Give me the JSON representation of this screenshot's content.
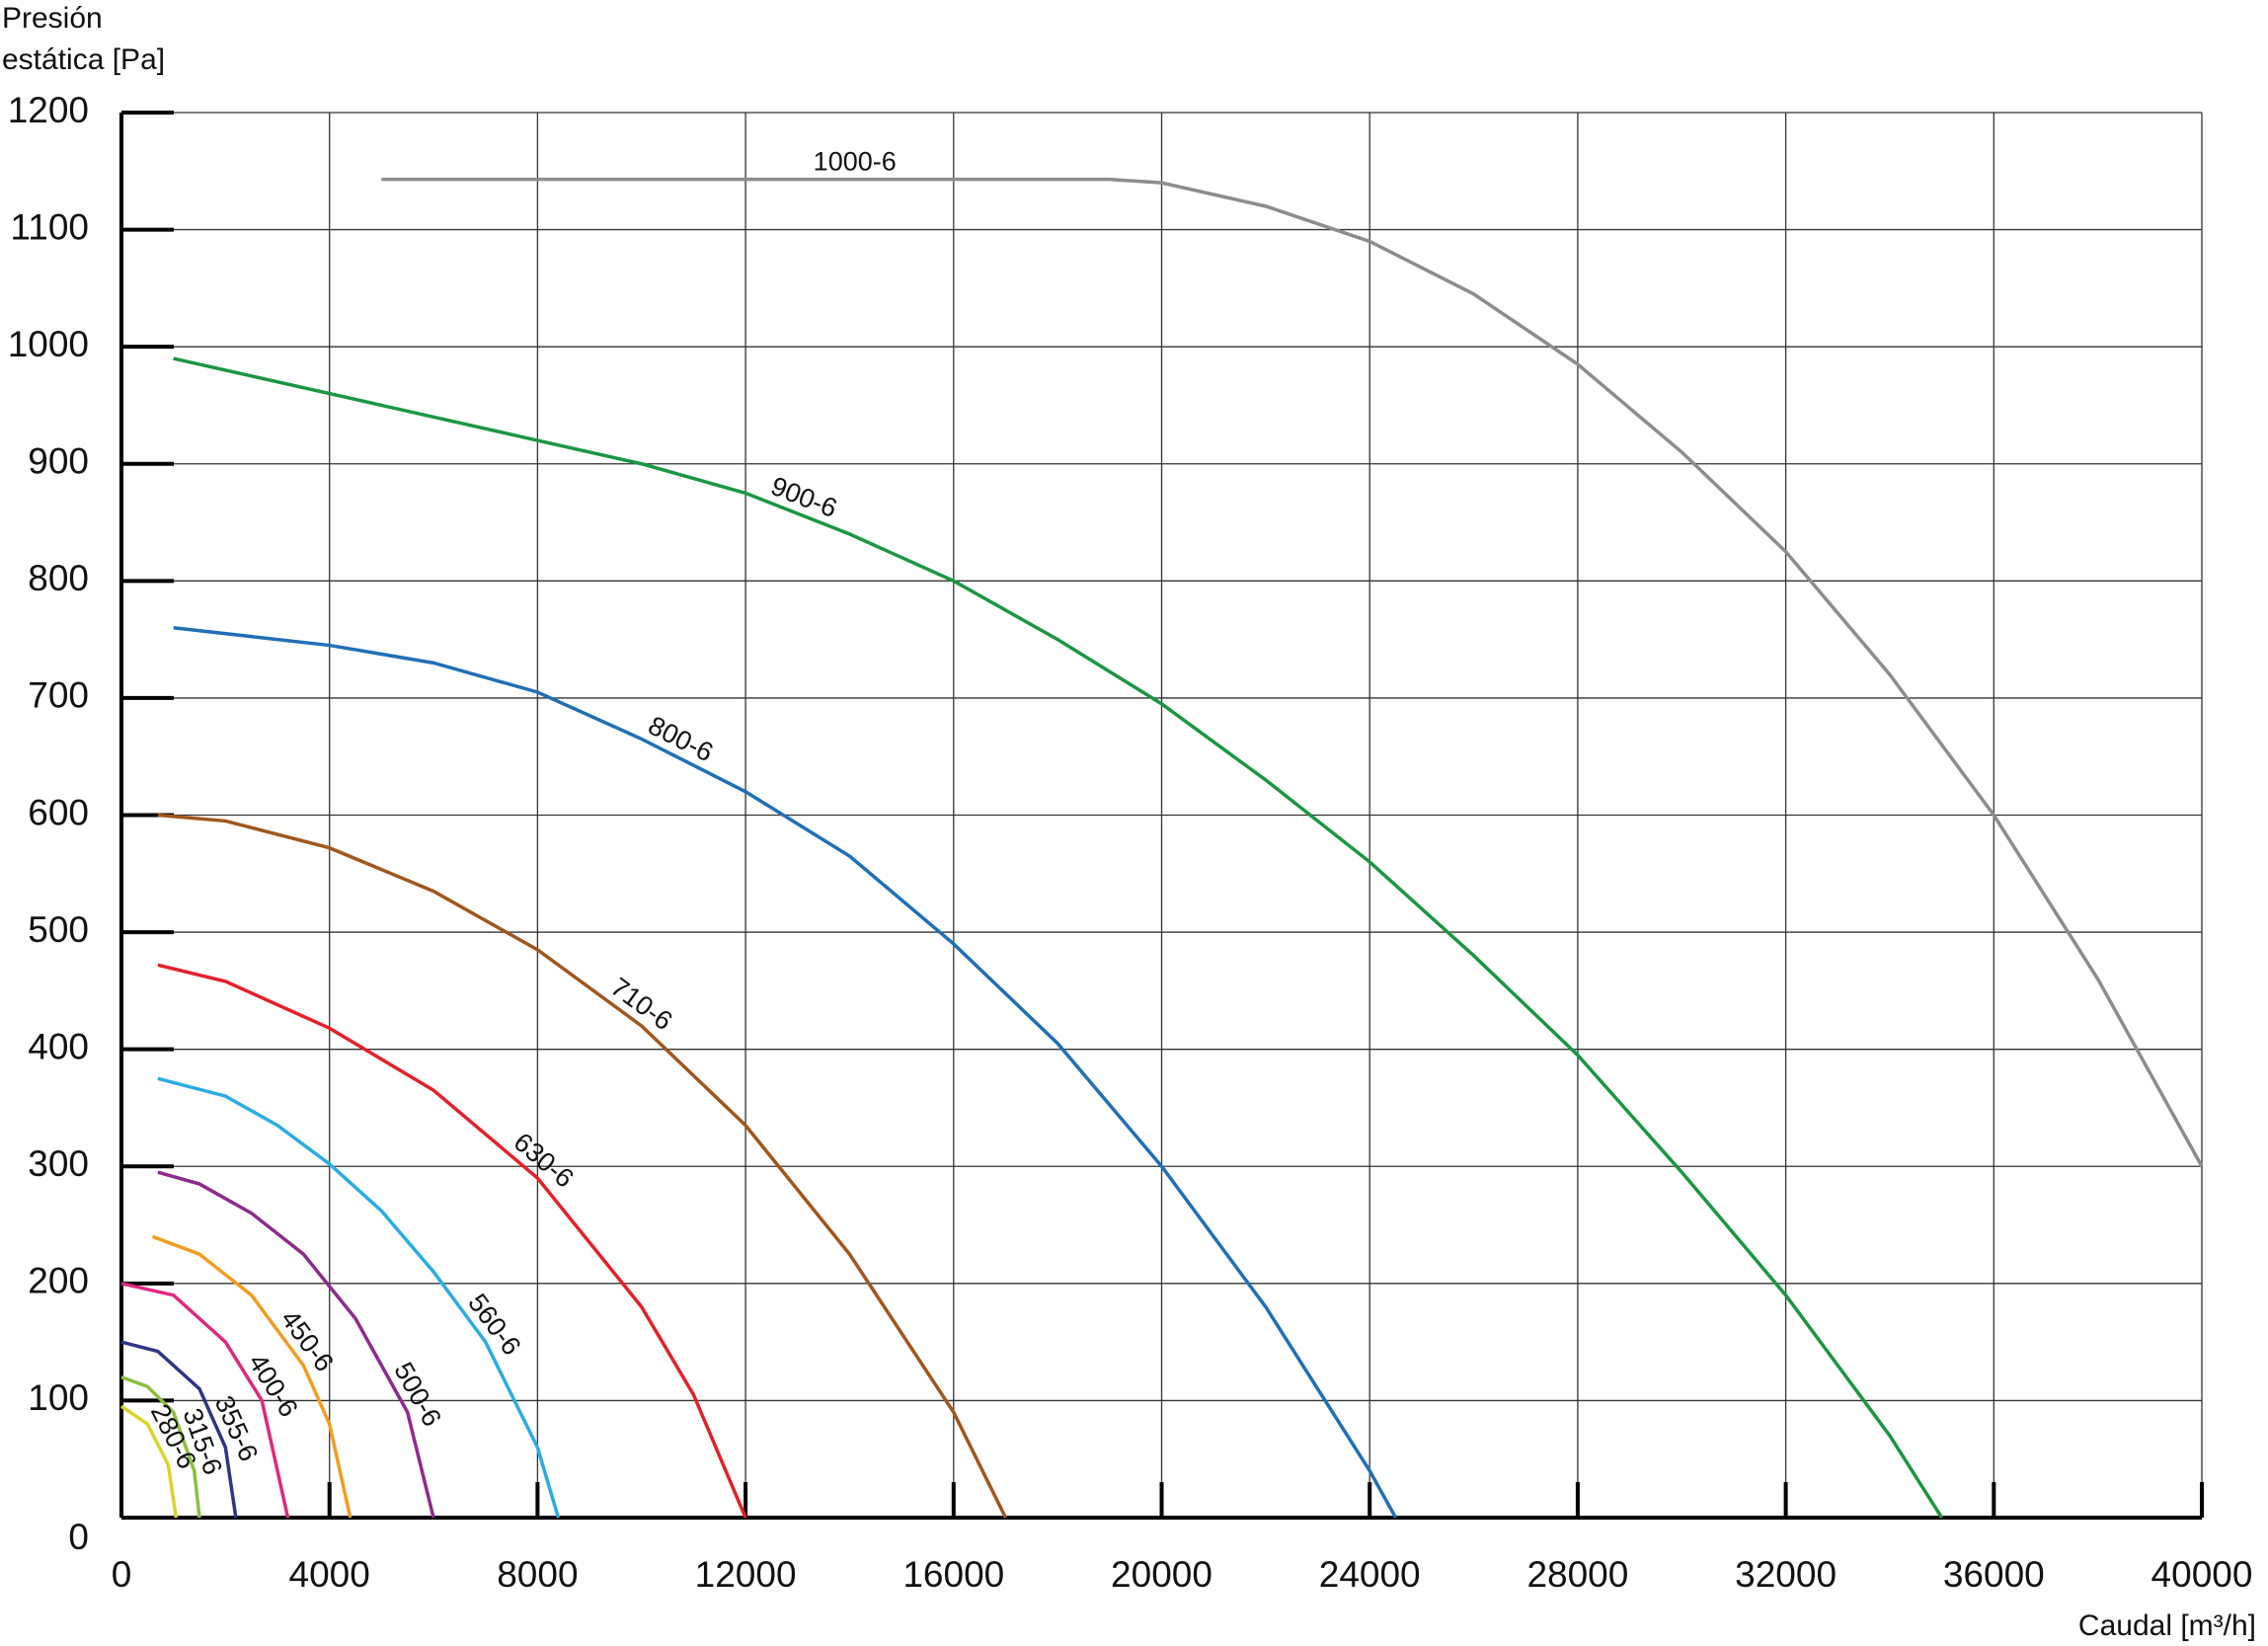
{
  "chart_data": {
    "type": "line",
    "ylabel": [
      "Presión",
      "estática [Pa]"
    ],
    "xlabel": "Caudal [m³/h]",
    "xlim": [
      0,
      40000
    ],
    "xticks": [
      0,
      4000,
      8000,
      12000,
      16000,
      20000,
      24000,
      28000,
      32000,
      36000,
      40000
    ],
    "ylim": [
      0,
      1200
    ],
    "yticks": [
      0,
      100,
      200,
      300,
      400,
      500,
      600,
      700,
      800,
      900,
      1000,
      1100,
      1200
    ],
    "grid": true,
    "series": [
      {
        "name": "1000-6",
        "color": "#8c8c8c",
        "x": [
          5000,
          19000,
          20000,
          22000,
          24000,
          26000,
          28000,
          30000,
          32000,
          34000,
          36000,
          38000,
          40000
        ],
        "values": [
          1143,
          1143,
          1140,
          1120,
          1090,
          1045,
          985,
          910,
          825,
          720,
          600,
          460,
          300
        ]
      },
      {
        "name": "900-6",
        "color": "#1a9641",
        "x": [
          1000,
          4000,
          8000,
          10000,
          12000,
          14000,
          16000,
          18000,
          20000,
          22000,
          24000,
          26000,
          28000,
          30000,
          32000,
          34000,
          35000
        ],
        "values": [
          990,
          960,
          920,
          900,
          875,
          840,
          800,
          750,
          695,
          630,
          560,
          480,
          395,
          295,
          190,
          70,
          0
        ]
      },
      {
        "name": "800-6",
        "color": "#1f6fb5",
        "x": [
          1000,
          4000,
          6000,
          8000,
          10000,
          12000,
          14000,
          16000,
          18000,
          20000,
          22000,
          24000,
          24500
        ],
        "values": [
          760,
          745,
          730,
          705,
          665,
          620,
          565,
          490,
          405,
          300,
          180,
          40,
          0
        ]
      },
      {
        "name": "710-6",
        "color": "#a0561c",
        "x": [
          700,
          2000,
          4000,
          6000,
          8000,
          10000,
          12000,
          14000,
          16000,
          17000
        ],
        "values": [
          600,
          595,
          572,
          535,
          485,
          420,
          335,
          225,
          90,
          0
        ]
      },
      {
        "name": "630-6",
        "color": "#e3202a",
        "x": [
          700,
          2000,
          4000,
          6000,
          8000,
          10000,
          11000,
          12000
        ],
        "values": [
          472,
          458,
          418,
          365,
          290,
          180,
          105,
          0
        ]
      },
      {
        "name": "560-6",
        "color": "#2aace2",
        "x": [
          700,
          2000,
          3000,
          4000,
          5000,
          6000,
          7000,
          8000,
          8400
        ],
        "values": [
          375,
          360,
          335,
          302,
          262,
          210,
          150,
          60,
          0
        ]
      },
      {
        "name": "500-6",
        "color": "#8e2a8c",
        "x": [
          700,
          1500,
          2500,
          3500,
          4500,
          5500,
          6000
        ],
        "values": [
          295,
          285,
          260,
          225,
          170,
          90,
          0
        ]
      },
      {
        "name": "450-6",
        "color": "#f39c1f",
        "x": [
          600,
          1500,
          2500,
          3500,
          4000,
          4400
        ],
        "values": [
          240,
          225,
          190,
          130,
          80,
          0
        ]
      },
      {
        "name": "400-6",
        "color": "#e0287f",
        "x": [
          0,
          1000,
          2000,
          2700,
          3200
        ],
        "values": [
          200,
          190,
          150,
          100,
          0
        ]
      },
      {
        "name": "355-6",
        "color": "#2e3584",
        "x": [
          0,
          700,
          1500,
          2000,
          2200
        ],
        "values": [
          150,
          142,
          110,
          60,
          0
        ]
      },
      {
        "name": "315-6",
        "color": "#8cbf3f",
        "x": [
          0,
          500,
          1000,
          1400,
          1500
        ],
        "values": [
          120,
          112,
          90,
          40,
          0
        ]
      },
      {
        "name": "280-6",
        "color": "#d9d42b",
        "x": [
          0,
          500,
          900,
          1050
        ],
        "values": [
          95,
          80,
          45,
          0
        ]
      }
    ]
  }
}
